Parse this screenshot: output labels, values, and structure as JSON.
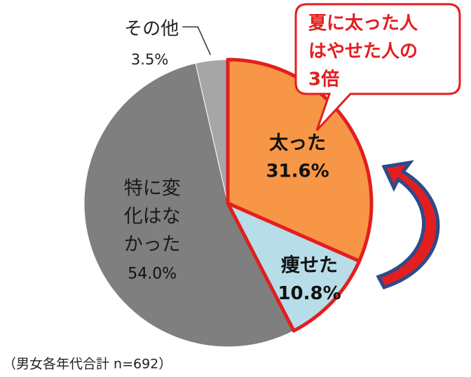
{
  "chart_data": {
    "type": "pie",
    "categories": [
      "太った",
      "痩せた",
      "特に変化はなかった",
      "その他"
    ],
    "values": [
      31.6,
      10.8,
      54.0,
      3.5
    ],
    "value_labels": [
      "31.6%",
      "10.8%",
      "54.0%",
      "3.5%"
    ],
    "colors": [
      "#f79646",
      "#b7dde8",
      "#7f7f7f",
      "#a6a6a6"
    ],
    "highlight": [
      true,
      true,
      false,
      false
    ],
    "highlight_color": "#e41e1e",
    "annotation": [
      "夏に太った人",
      "はやせた人の",
      "3倍"
    ],
    "note": "（男女各年代合計 n=692）"
  }
}
